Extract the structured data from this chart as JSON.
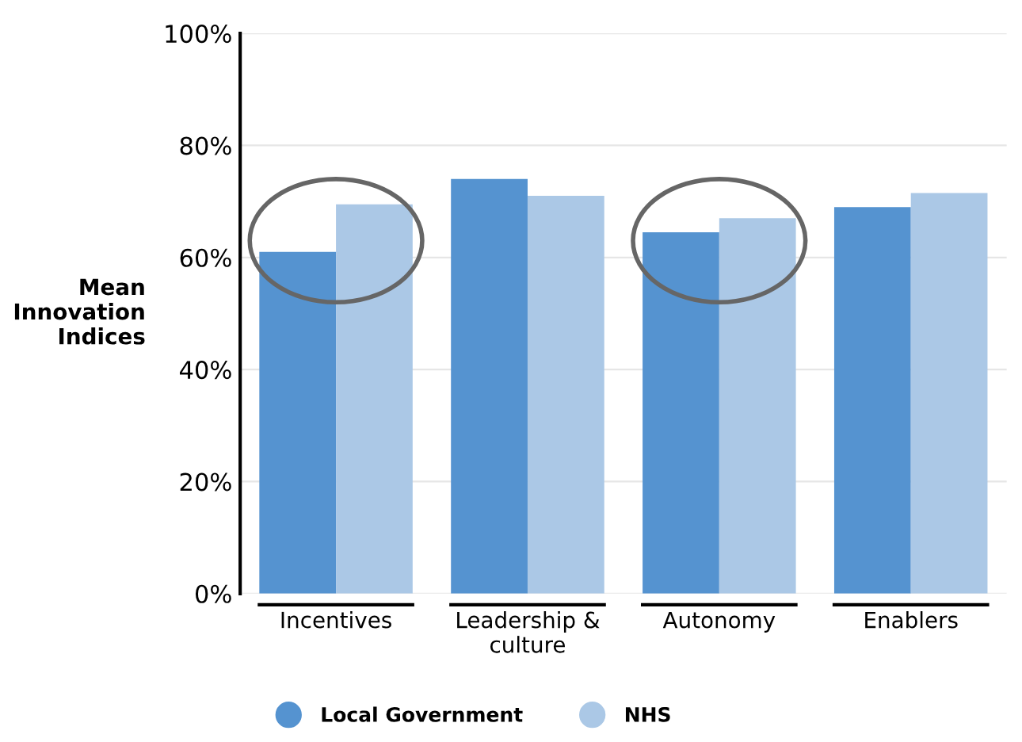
{
  "chart_data": {
    "type": "bar",
    "ylabel": "Mean\nInnovation\nIndices",
    "categories": [
      "Incentives",
      "Leadership &\nculture",
      "Autonomy",
      "Enablers"
    ],
    "series": [
      {
        "name": "Local Government",
        "color": "#5593d0",
        "values": [
          61,
          74,
          64.5,
          69
        ]
      },
      {
        "name": "NHS",
        "color": "#abc8e6",
        "values": [
          69.5,
          71,
          67,
          71.5
        ]
      }
    ],
    "ylim": [
      0,
      100
    ],
    "yticks": [
      {
        "value": 0,
        "label": "0%"
      },
      {
        "value": 20,
        "label": "20%"
      },
      {
        "value": 40,
        "label": "40%"
      },
      {
        "value": 60,
        "label": "60%"
      },
      {
        "value": 80,
        "label": "80%"
      },
      {
        "value": 100,
        "label": "100%"
      }
    ],
    "grid": "y",
    "legend": "bottom",
    "marker": "circle"
  }
}
